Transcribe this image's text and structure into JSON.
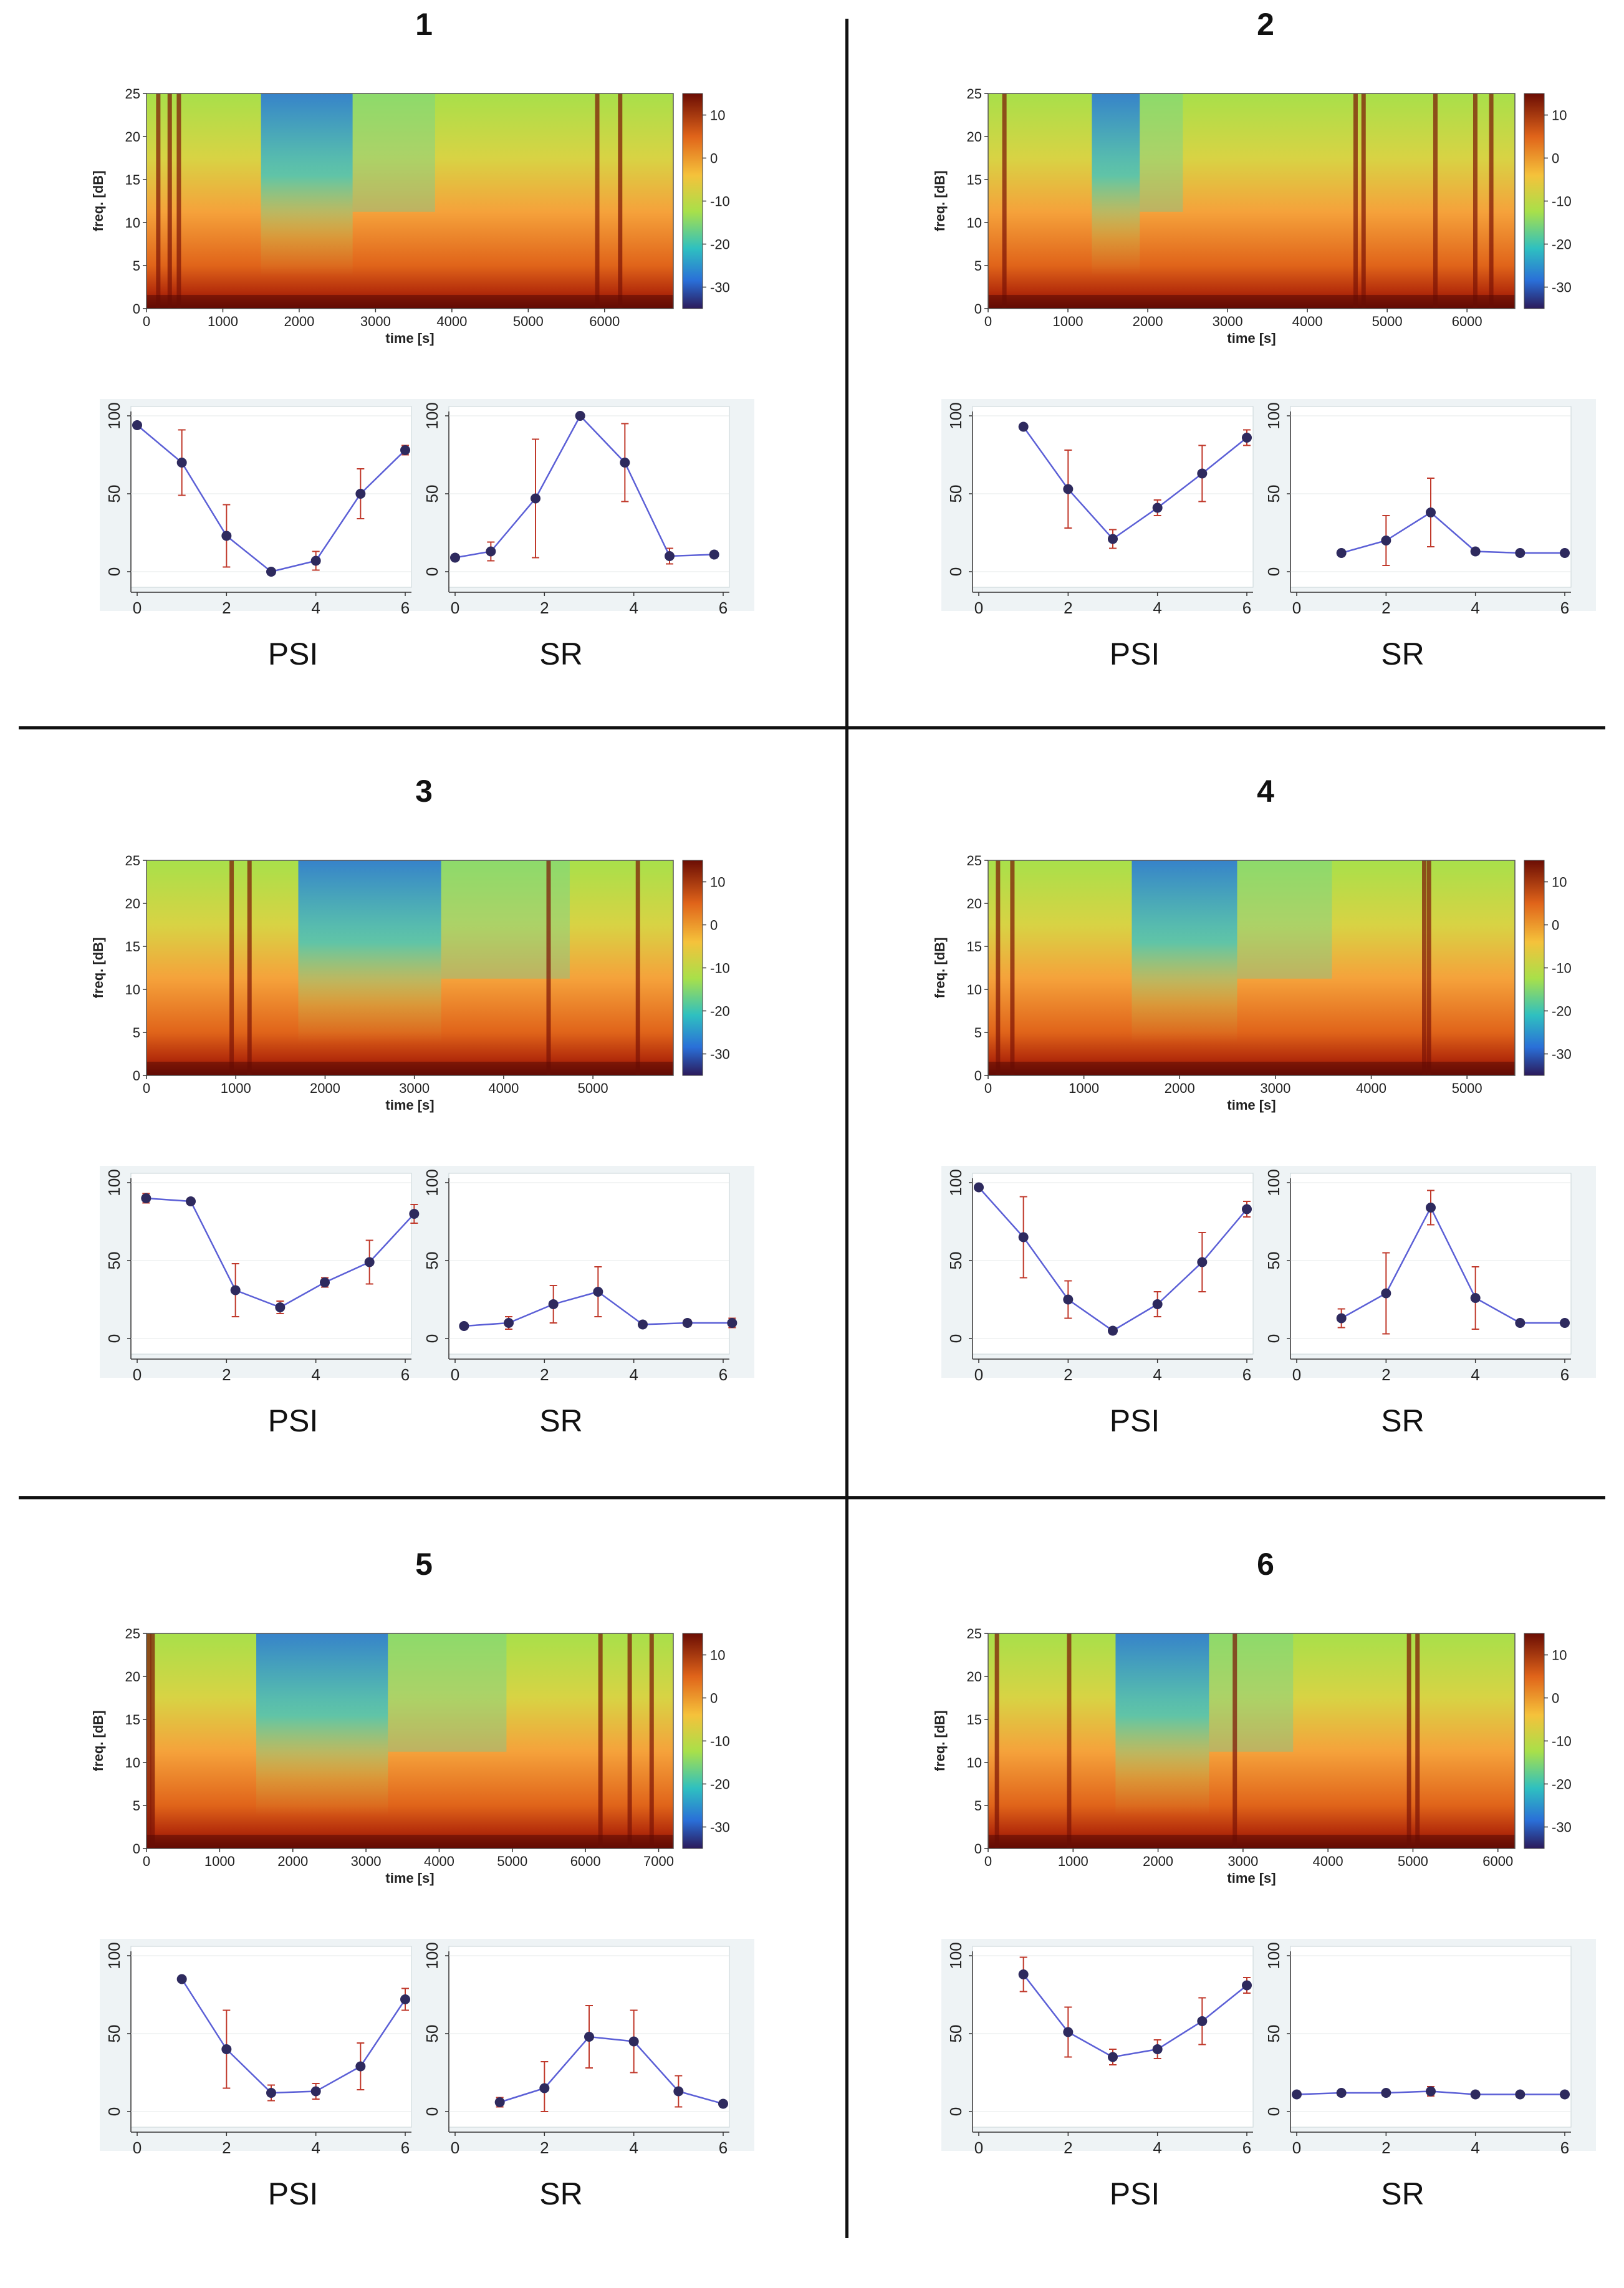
{
  "common": {
    "spec_ylabel": "freq. [dB]",
    "spec_xlabel": "time [s]",
    "spec_ylim": [
      0,
      25
    ],
    "spec_yticks": [
      0,
      5,
      10,
      15,
      20,
      25
    ],
    "colorbar_ticks": [
      10,
      0,
      -10,
      -20,
      -30
    ],
    "colorbar_range": [
      -35,
      15
    ],
    "psi_label": "PSI",
    "sr_label": "SR",
    "mini_ylim": [
      0,
      100
    ],
    "mini_yticks": [
      0,
      50,
      100
    ],
    "mini_xlim": [
      0,
      6
    ],
    "mini_xticks": [
      0,
      2,
      4,
      6
    ]
  },
  "chart_data": [
    {
      "type": "heatmap",
      "panel": "1",
      "title": "1",
      "xlabel": "time [s]",
      "ylabel": "freq. [dB]",
      "xlim": [
        0,
        6900
      ],
      "xticks": [
        0,
        1000,
        2000,
        3000,
        4000,
        5000,
        6000
      ],
      "dark_bands_s": [
        150,
        300,
        420,
        5900,
        6200
      ],
      "blue_interval_s": [
        1500,
        2700
      ],
      "psi": {
        "x": [
          0,
          1,
          2,
          3,
          4,
          5,
          6
        ],
        "y": [
          94,
          70,
          23,
          0,
          7,
          50,
          78
        ],
        "err": [
          1,
          21,
          20,
          1,
          6,
          16,
          3
        ]
      },
      "sr": {
        "x": [
          0,
          0.8,
          1.8,
          2.8,
          3.8,
          4.8,
          5.8
        ],
        "y": [
          9,
          13,
          47,
          100,
          70,
          10,
          11
        ],
        "err": [
          1,
          6,
          38,
          1,
          25,
          5,
          2
        ]
      }
    },
    {
      "type": "heatmap",
      "panel": "2",
      "title": "2",
      "xlabel": "time [s]",
      "ylabel": "freq. [dB]",
      "xlim": [
        0,
        6600
      ],
      "xticks": [
        0,
        1000,
        2000,
        3000,
        4000,
        5000,
        6000
      ],
      "dark_bands_s": [
        200,
        4600,
        4700,
        5600,
        6100,
        6300
      ],
      "blue_interval_s": [
        1300,
        1900
      ],
      "psi": {
        "x": [
          1,
          2,
          3,
          4,
          5,
          6
        ],
        "y": [
          93,
          53,
          21,
          41,
          63,
          86
        ],
        "err": [
          1,
          25,
          6,
          5,
          18,
          5
        ]
      },
      "sr": {
        "x": [
          1,
          2,
          3,
          4,
          5,
          6
        ],
        "y": [
          12,
          20,
          38,
          13,
          12,
          12
        ],
        "err": [
          1,
          16,
          22,
          1,
          1,
          1
        ]
      }
    },
    {
      "type": "heatmap",
      "panel": "3",
      "title": "3",
      "xlabel": "time [s]",
      "ylabel": "freq. [dB]",
      "xlim": [
        0,
        5900
      ],
      "xticks": [
        0,
        1000,
        2000,
        3000,
        4000,
        5000
      ],
      "dark_bands_s": [
        950,
        1150,
        4500,
        5500
      ],
      "blue_interval_s": [
        1700,
        3300
      ],
      "psi": {
        "x": [
          0.2,
          1.2,
          2.2,
          3.2,
          4.2,
          5.2,
          6.2
        ],
        "y": [
          90,
          88,
          31,
          20,
          36,
          49,
          80
        ],
        "err": [
          3,
          2,
          17,
          4,
          3,
          14,
          6
        ]
      },
      "sr": {
        "x": [
          0.2,
          1.2,
          2.2,
          3.2,
          4.2,
          5.2,
          6.2
        ],
        "y": [
          8,
          10,
          22,
          30,
          9,
          10,
          10
        ],
        "err": [
          1,
          4,
          12,
          16,
          1,
          2,
          3
        ]
      }
    },
    {
      "type": "heatmap",
      "panel": "4",
      "title": "4",
      "xlabel": "time [s]",
      "ylabel": "freq. [dB]",
      "xlim": [
        0,
        5500
      ],
      "xticks": [
        0,
        1000,
        2000,
        3000,
        4000,
        5000
      ],
      "dark_bands_s": [
        100,
        250,
        4550,
        4600
      ],
      "blue_interval_s": [
        1500,
        2600
      ],
      "psi": {
        "x": [
          0,
          1,
          2,
          3,
          4,
          5,
          6
        ],
        "y": [
          97,
          65,
          25,
          5,
          22,
          49,
          83
        ],
        "err": [
          1,
          26,
          12,
          2,
          8,
          19,
          5
        ]
      },
      "sr": {
        "x": [
          1,
          2,
          3,
          4,
          5,
          6
        ],
        "y": [
          13,
          29,
          84,
          26,
          10,
          10
        ],
        "err": [
          6,
          26,
          11,
          20,
          1,
          1
        ]
      }
    },
    {
      "type": "heatmap",
      "panel": "5",
      "title": "5",
      "xlabel": "time [s]",
      "ylabel": "freq. [dB]",
      "xlim": [
        0,
        7200
      ],
      "xticks": [
        0,
        1000,
        2000,
        3000,
        4000,
        5000,
        6000,
        7000
      ],
      "dark_bands_s": [
        30,
        80,
        6200,
        6600,
        6900
      ],
      "blue_interval_s": [
        1500,
        3300
      ],
      "psi": {
        "x": [
          1,
          2,
          3,
          4,
          5,
          6
        ],
        "y": [
          85,
          40,
          12,
          13,
          29,
          72
        ],
        "err": [
          1,
          25,
          5,
          5,
          15,
          7
        ]
      },
      "sr": {
        "x": [
          1,
          2,
          3,
          4,
          5,
          6
        ],
        "y": [
          6,
          15,
          48,
          45,
          13,
          5
        ],
        "err": [
          3,
          17,
          20,
          20,
          10,
          1
        ]
      }
    },
    {
      "type": "heatmap",
      "panel": "6",
      "title": "6",
      "xlabel": "time [s]",
      "ylabel": "freq. [dB]",
      "xlim": [
        0,
        6200
      ],
      "xticks": [
        0,
        1000,
        2000,
        3000,
        4000,
        5000,
        6000
      ],
      "dark_bands_s": [
        100,
        950,
        2900,
        4950,
        5050
      ],
      "blue_interval_s": [
        1500,
        2600
      ],
      "psi": {
        "x": [
          1,
          2,
          3,
          4,
          5,
          6
        ],
        "y": [
          88,
          51,
          35,
          40,
          58,
          81
        ],
        "err": [
          11,
          16,
          5,
          6,
          15,
          5
        ]
      },
      "sr": {
        "x": [
          0,
          1,
          2,
          3,
          4,
          5,
          6
        ],
        "y": [
          11,
          12,
          12,
          13,
          11,
          11,
          11
        ],
        "err": [
          1,
          1,
          1,
          3,
          1,
          1,
          1
        ]
      }
    }
  ]
}
